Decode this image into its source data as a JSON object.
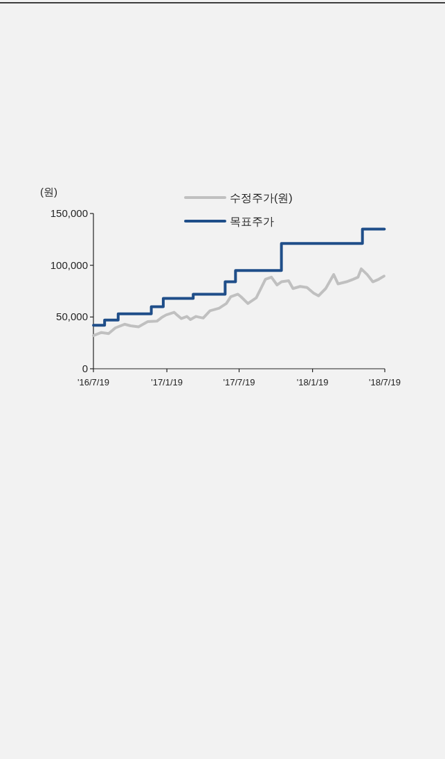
{
  "chart_data": {
    "type": "line",
    "ylabel": "(원)",
    "legend": "top",
    "grid": false,
    "ylim": [
      0,
      150000
    ],
    "yticks": [
      {
        "value": 0,
        "label": "0"
      },
      {
        "value": 50000,
        "label": "50,000"
      },
      {
        "value": 100000,
        "label": "100,000"
      },
      {
        "value": 150000,
        "label": "150,000"
      }
    ],
    "xlim": [
      "2016-07-19",
      "2018-07-19"
    ],
    "xticks": [
      {
        "value": "2016-07-19",
        "label": "'16/7/19"
      },
      {
        "value": "2017-01-19",
        "label": "'17/1/19"
      },
      {
        "value": "2017-07-19",
        "label": "'17/7/19"
      },
      {
        "value": "2018-01-19",
        "label": "'18/1/19"
      },
      {
        "value": "2018-07-19",
        "label": "'18/7/19"
      }
    ],
    "series": [
      {
        "name": "수정주가(원)",
        "color": "#c0c0c0",
        "x": [
          "2016-07-19",
          "2016-08-08",
          "2016-08-26",
          "2016-09-12",
          "2016-10-05",
          "2016-10-20",
          "2016-11-09",
          "2016-12-02",
          "2016-12-25",
          "2017-01-06",
          "2017-01-17",
          "2017-02-06",
          "2017-02-24",
          "2017-03-10",
          "2017-03-19",
          "2017-04-02",
          "2017-04-20",
          "2017-05-07",
          "2017-05-30",
          "2017-06-17",
          "2017-06-28",
          "2017-07-16",
          "2017-07-24",
          "2017-08-10",
          "2017-08-31",
          "2017-09-23",
          "2017-10-08",
          "2017-10-22",
          "2017-11-02",
          "2017-11-20",
          "2017-12-01",
          "2017-12-19",
          "2018-01-05",
          "2018-01-22",
          "2018-02-03",
          "2018-02-21",
          "2018-03-13",
          "2018-03-24",
          "2018-04-14",
          "2018-05-01",
          "2018-05-13",
          "2018-05-21",
          "2018-06-05",
          "2018-06-19",
          "2018-07-04",
          "2018-07-17"
        ],
        "values": [
          32000,
          35000,
          34000,
          39500,
          43000,
          41500,
          40500,
          45500,
          46000,
          49500,
          52000,
          54500,
          48500,
          50500,
          47500,
          50500,
          49000,
          56000,
          58500,
          63000,
          69500,
          72000,
          69500,
          63000,
          68500,
          86500,
          88500,
          81000,
          84000,
          85000,
          77500,
          79500,
          78500,
          73000,
          70500,
          77500,
          91000,
          82000,
          84000,
          86500,
          88500,
          96500,
          91000,
          84000,
          86500,
          89500
        ]
      },
      {
        "name": "목표주가",
        "color": "#1f4e89",
        "type": "step",
        "x": [
          "2016-07-19",
          "2016-08-16",
          "2016-09-19",
          "2016-12-11",
          "2017-01-10",
          "2017-03-26",
          "2017-06-14",
          "2017-07-10",
          "2017-11-02",
          "2018-05-24",
          "2018-07-18"
        ],
        "values": [
          42000,
          47000,
          53000,
          60000,
          68000,
          72000,
          84000,
          95000,
          121000,
          135000,
          135000
        ]
      }
    ]
  }
}
